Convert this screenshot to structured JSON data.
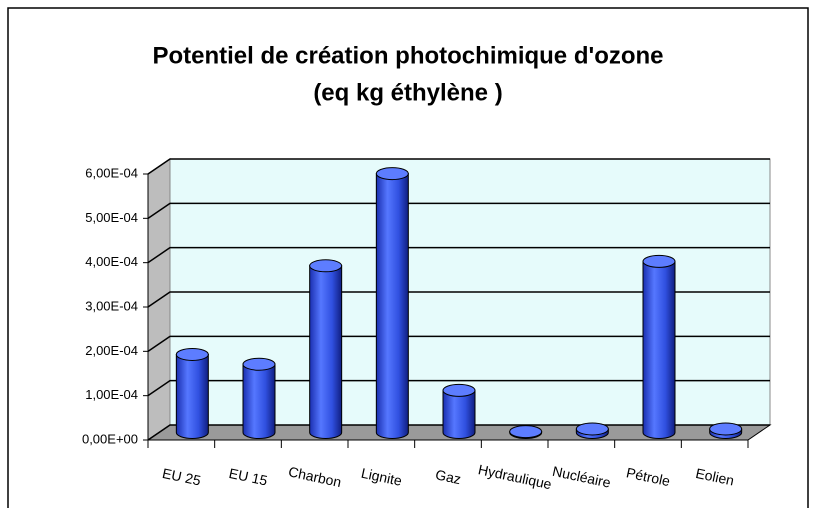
{
  "chart_data": {
    "type": "bar",
    "title": "Potentiel de création photochimique d'ozone",
    "subtitle": "(eq kg éthylène )",
    "categories": [
      "EU 25",
      "EU 15",
      "Charbon",
      "Lignite",
      "Gaz",
      "Hydraulique",
      "Nucléaire",
      "Pétrole",
      "Eolien"
    ],
    "values": [
      0.000176,
      0.000154,
      0.000376,
      0.000584,
      9.5e-05,
      2e-06,
      8e-06,
      0.000386,
      8e-06
    ],
    "color": "#3355ee",
    "ylim": [
      0,
      0.0006
    ],
    "yticks": [
      {
        "value": 0,
        "label": "0,00E+00"
      },
      {
        "value": 0.0001,
        "label": "1,00E-04"
      },
      {
        "value": 0.0002,
        "label": "2,00E-04"
      },
      {
        "value": 0.0003,
        "label": "3,00E-04"
      },
      {
        "value": 0.0004,
        "label": "4,00E-04"
      },
      {
        "value": 0.0005,
        "label": "5,00E-04"
      },
      {
        "value": 0.0006,
        "label": "6,00E-04"
      }
    ],
    "grid": true
  }
}
